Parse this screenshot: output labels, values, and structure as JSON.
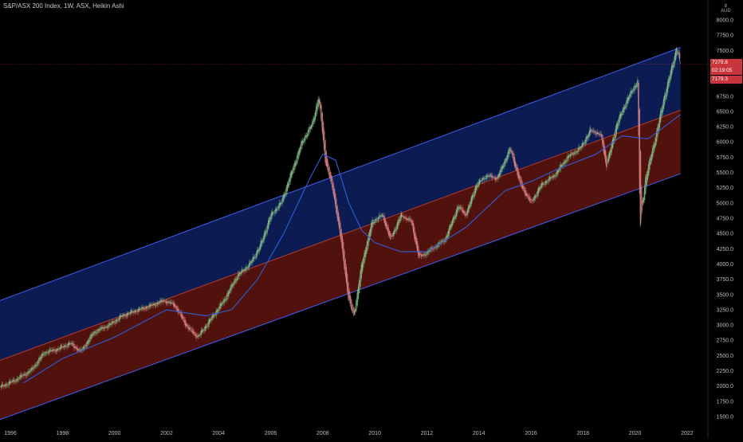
{
  "header": {
    "symbol_title": "S&P/ASX 200 Index, 1W, ASX, Heikin Ashi",
    "axis_unit_marker": "8",
    "currency": "AUD"
  },
  "price_labels": {
    "last_price": "7279.8",
    "countdown": "02:19:05",
    "secondary_price": "7179.3"
  },
  "colors": {
    "background": "#000000",
    "upper_channel_fill": "#0d1f5c",
    "lower_channel_fill": "#5a1410",
    "channel_line": "#3f5ff0",
    "moving_average": "#2b5fd9",
    "candle_up": "#7fbf86",
    "candle_down": "#e07f88",
    "last_price_tag": "#c8363c",
    "secondary_price_tag": "#c8363c"
  },
  "chart_data": {
    "type": "line",
    "title": "S&P/ASX 200 Index, 1W, ASX, Heikin Ashi",
    "xlabel": "",
    "ylabel": "",
    "xlim": [
      1995.6,
      2022.8
    ],
    "ylim": [
      1400,
      8250
    ],
    "x_ticks": [
      "1996",
      "1998",
      "2000",
      "2002",
      "2004",
      "2006",
      "2008",
      "2010",
      "2012",
      "2014",
      "2016",
      "2018",
      "2020",
      "2022"
    ],
    "y_ticks": [
      "8000.0",
      "7750.0",
      "7500.0",
      "7250.0",
      "7000.0",
      "6750.0",
      "6500.0",
      "6250.0",
      "6000.0",
      "5750.0",
      "5500.0",
      "5250.0",
      "5000.0",
      "4750.0",
      "4500.0",
      "4250.0",
      "4000.0",
      "3750.0",
      "3500.0",
      "3250.0",
      "3000.0",
      "2750.0",
      "2500.0",
      "2250.0",
      "2000.0",
      "1750.0",
      "1500.0"
    ],
    "grid": false,
    "series": [
      {
        "values": [
          {
            "x": 1995.6,
            "y": 1980
          },
          {
            "x": 1996.2,
            "y": 2100
          },
          {
            "x": 1996.8,
            "y": 2260
          },
          {
            "x": 1997.3,
            "y": 2550
          },
          {
            "x": 1997.8,
            "y": 2600
          },
          {
            "x": 1998.3,
            "y": 2700
          },
          {
            "x": 1998.7,
            "y": 2560
          },
          {
            "x": 1999.2,
            "y": 2880
          },
          {
            "x": 1999.8,
            "y": 3000
          },
          {
            "x": 2000.3,
            "y": 3150
          },
          {
            "x": 2000.8,
            "y": 3230
          },
          {
            "x": 2001.3,
            "y": 3300
          },
          {
            "x": 2001.9,
            "y": 3400
          },
          {
            "x": 2002.3,
            "y": 3330
          },
          {
            "x": 2002.8,
            "y": 2960
          },
          {
            "x": 2003.2,
            "y": 2800
          },
          {
            "x": 2003.7,
            "y": 3100
          },
          {
            "x": 2004.2,
            "y": 3400
          },
          {
            "x": 2004.7,
            "y": 3800
          },
          {
            "x": 2005.2,
            "y": 4000
          },
          {
            "x": 2005.6,
            "y": 4300
          },
          {
            "x": 2006.0,
            "y": 4800
          },
          {
            "x": 2006.4,
            "y": 5000
          },
          {
            "x": 2006.8,
            "y": 5500
          },
          {
            "x": 2007.2,
            "y": 6000
          },
          {
            "x": 2007.6,
            "y": 6300
          },
          {
            "x": 2007.85,
            "y": 6750
          },
          {
            "x": 2008.1,
            "y": 5700
          },
          {
            "x": 2008.4,
            "y": 5200
          },
          {
            "x": 2008.7,
            "y": 4400
          },
          {
            "x": 2009.0,
            "y": 3400
          },
          {
            "x": 2009.2,
            "y": 3150
          },
          {
            "x": 2009.5,
            "y": 4000
          },
          {
            "x": 2009.9,
            "y": 4700
          },
          {
            "x": 2010.3,
            "y": 4800
          },
          {
            "x": 2010.6,
            "y": 4400
          },
          {
            "x": 2011.0,
            "y": 4800
          },
          {
            "x": 2011.4,
            "y": 4700
          },
          {
            "x": 2011.7,
            "y": 4100
          },
          {
            "x": 2012.2,
            "y": 4250
          },
          {
            "x": 2012.7,
            "y": 4400
          },
          {
            "x": 2013.2,
            "y": 4950
          },
          {
            "x": 2013.5,
            "y": 4800
          },
          {
            "x": 2013.9,
            "y": 5300
          },
          {
            "x": 2014.3,
            "y": 5450
          },
          {
            "x": 2014.7,
            "y": 5400
          },
          {
            "x": 2015.2,
            "y": 5900
          },
          {
            "x": 2015.6,
            "y": 5300
          },
          {
            "x": 2016.0,
            "y": 5000
          },
          {
            "x": 2016.4,
            "y": 5300
          },
          {
            "x": 2016.9,
            "y": 5450
          },
          {
            "x": 2017.4,
            "y": 5750
          },
          {
            "x": 2017.9,
            "y": 5900
          },
          {
            "x": 2018.3,
            "y": 6200
          },
          {
            "x": 2018.7,
            "y": 6100
          },
          {
            "x": 2018.9,
            "y": 5600
          },
          {
            "x": 2019.3,
            "y": 6300
          },
          {
            "x": 2019.7,
            "y": 6700
          },
          {
            "x": 2020.1,
            "y": 7000
          },
          {
            "x": 2020.2,
            "y": 4600
          },
          {
            "x": 2020.4,
            "y": 5400
          },
          {
            "x": 2020.8,
            "y": 6100
          },
          {
            "x": 2021.1,
            "y": 6700
          },
          {
            "x": 2021.4,
            "y": 7200
          },
          {
            "x": 2021.6,
            "y": 7550
          },
          {
            "x": 2021.75,
            "y": 7280
          }
        ]
      },
      {
        "values": [
          {
            "x": 1996.5,
            "y": 2050
          },
          {
            "x": 1998.0,
            "y": 2450
          },
          {
            "x": 2000.0,
            "y": 2800
          },
          {
            "x": 2002.0,
            "y": 3250
          },
          {
            "x": 2003.5,
            "y": 3150
          },
          {
            "x": 2004.5,
            "y": 3250
          },
          {
            "x": 2005.5,
            "y": 3750
          },
          {
            "x": 2006.5,
            "y": 4500
          },
          {
            "x": 2007.5,
            "y": 5400
          },
          {
            "x": 2008.0,
            "y": 5800
          },
          {
            "x": 2008.5,
            "y": 5700
          },
          {
            "x": 2009.0,
            "y": 5000
          },
          {
            "x": 2009.5,
            "y": 4550
          },
          {
            "x": 2010.0,
            "y": 4350
          },
          {
            "x": 2011.0,
            "y": 4200
          },
          {
            "x": 2012.0,
            "y": 4200
          },
          {
            "x": 2013.5,
            "y": 4600
          },
          {
            "x": 2015.0,
            "y": 5200
          },
          {
            "x": 2016.0,
            "y": 5350
          },
          {
            "x": 2017.0,
            "y": 5550
          },
          {
            "x": 2018.5,
            "y": 5800
          },
          {
            "x": 2019.5,
            "y": 6100
          },
          {
            "x": 2020.5,
            "y": 6050
          },
          {
            "x": 2021.75,
            "y": 6450
          }
        ]
      }
    ],
    "channel": {
      "upper": [
        {
          "x": 1995.6,
          "y": 3400
        },
        {
          "x": 2021.75,
          "y": 7550
        }
      ],
      "middle": [
        {
          "x": 1995.6,
          "y": 2420
        },
        {
          "x": 2021.75,
          "y": 6520
        }
      ],
      "lower": [
        {
          "x": 1995.6,
          "y": 1450
        },
        {
          "x": 2021.75,
          "y": 5480
        }
      ]
    },
    "price_markers": {
      "last_price": 7279.8,
      "secondary_price": 7179.3
    }
  }
}
